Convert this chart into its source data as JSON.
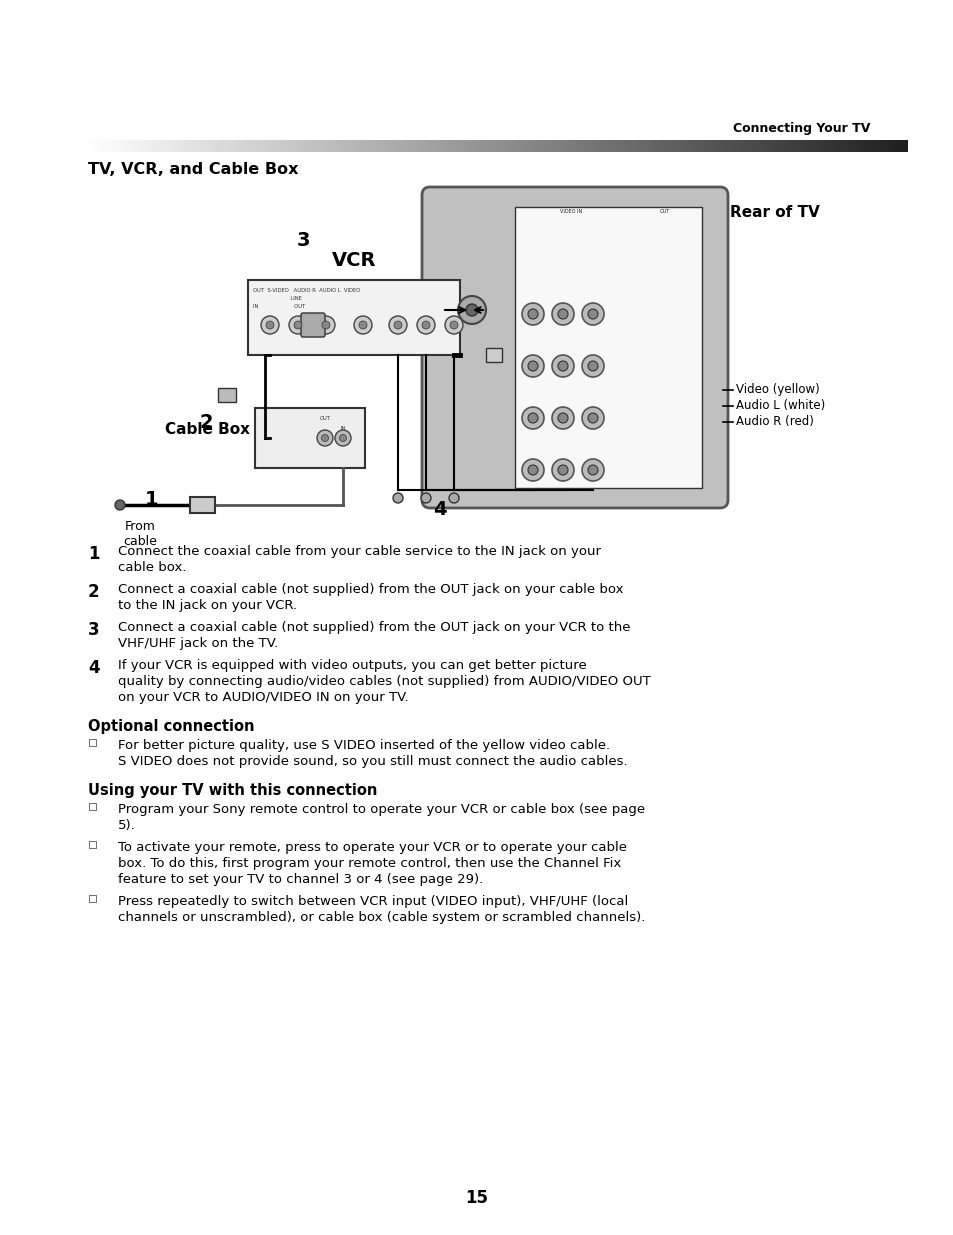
{
  "page_title": "Connecting Your TV",
  "section_title": "TV, VCR, and Cable Box",
  "diagram_labels": {
    "rear_of_tv": "Rear of TV",
    "vcr": "VCR",
    "cable_box": "Cable Box",
    "from_cable": "From\ncable",
    "video_yellow": "Video (yellow)",
    "audio_l": "Audio L (white)",
    "audio_r": "Audio R (red)",
    "num1": "1",
    "num2": "2",
    "num3": "3",
    "num4": "4"
  },
  "instructions": [
    {
      "num": "1",
      "text": "Connect the coaxial cable from your cable service to the IN jack on your cable box."
    },
    {
      "num": "2",
      "text": "Connect a coaxial cable (not supplied) from the OUT jack on your cable box to the IN jack on your VCR."
    },
    {
      "num": "3",
      "text": "Connect a coaxial cable (not supplied) from the OUT jack on your VCR to the VHF/UHF jack on the TV."
    },
    {
      "num": "4",
      "text": "If your VCR is equipped with video outputs, you can get better picture quality by connecting audio/video cables (not supplied) from AUDIO/VIDEO OUT on your VCR to AUDIO/VIDEO IN on your TV."
    }
  ],
  "optional_title": "Optional connection",
  "optional_bullets": [
    "For better picture quality, use S VIDEO inserted of the yellow video cable. S VIDEO does not provide sound, so you still must connect the audio cables."
  ],
  "using_title": "Using your TV with this connection",
  "using_bullets": [
    "Program your Sony remote control to operate your VCR or cable box (see page 5).",
    "To activate your remote, press  to operate your VCR or  to operate your cable box. To do this, first program your remote control, then use the Channel Fix feature to set your TV to channel 3 or 4 (see page 29).",
    "Press  repeatedly to switch between VCR input (VIDEO input), VHF/UHF (local channels or unscrambled), or cable box (cable system or scrambled channels)."
  ],
  "page_number": "15",
  "bg_color": "#ffffff",
  "text_color": "#000000"
}
